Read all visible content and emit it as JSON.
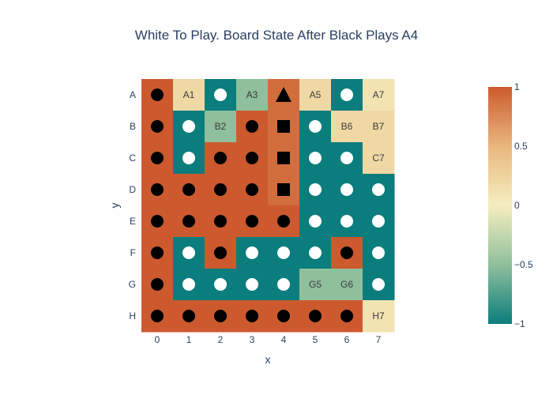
{
  "chart_data": {
    "type": "heatmap",
    "title": "White To Play. Board State After Black Plays A4",
    "xlabel": "x",
    "ylabel": "y",
    "x_ticks": [
      "0",
      "1",
      "2",
      "3",
      "4",
      "5",
      "6",
      "7"
    ],
    "y_ticks": [
      "A",
      "B",
      "C",
      "D",
      "E",
      "F",
      "G",
      "H"
    ],
    "colorscale": {
      "min": -1,
      "max": 1,
      "stops": [
        [
          0,
          "#0b7d7d"
        ],
        [
          0.25,
          "#8fbf9c"
        ],
        [
          0.5,
          "#f5eebf"
        ],
        [
          0.75,
          "#e9b77e"
        ],
        [
          1,
          "#cc5a2e"
        ]
      ],
      "ticks": [
        -1,
        -0.5,
        0,
        0.5,
        1
      ],
      "tick_labels": [
        "−1",
        "−0.5",
        "0",
        "0.5",
        "1"
      ]
    },
    "z": [
      [
        1,
        0.2,
        -1,
        -0.5,
        0.9,
        0.2,
        -1,
        0.1
      ],
      [
        1,
        -1,
        -0.5,
        1,
        0.9,
        -1,
        0.2,
        0.2
      ],
      [
        1,
        -1,
        1,
        1,
        0.9,
        -1,
        -1,
        0.2
      ],
      [
        1,
        1,
        1,
        1,
        0.9,
        -1,
        -1,
        -1
      ],
      [
        1,
        1,
        1,
        1,
        1,
        -1,
        -1,
        -1
      ],
      [
        1,
        -1,
        1,
        -1,
        -1,
        -1,
        1,
        -1
      ],
      [
        1,
        -1,
        -1,
        -1,
        -1,
        -0.5,
        -0.5,
        -1
      ],
      [
        1,
        1,
        1,
        1,
        1,
        1,
        1,
        0.1
      ]
    ],
    "markers": [
      [
        "black-circle",
        "empty",
        "white-circle",
        "empty",
        "black-triangle",
        "empty",
        "white-circle",
        "empty"
      ],
      [
        "black-circle",
        "white-circle",
        "empty",
        "black-circle",
        "black-square",
        "white-circle",
        "empty",
        "empty"
      ],
      [
        "black-circle",
        "white-circle",
        "black-circle",
        "black-circle",
        "black-square",
        "white-circle",
        "white-circle",
        "empty"
      ],
      [
        "black-circle",
        "black-circle",
        "black-circle",
        "black-circle",
        "black-square",
        "white-circle",
        "white-circle",
        "white-circle"
      ],
      [
        "black-circle",
        "black-circle",
        "black-circle",
        "black-circle",
        "black-circle",
        "white-circle",
        "white-circle",
        "white-circle"
      ],
      [
        "black-circle",
        "white-circle",
        "black-circle",
        "white-circle",
        "white-circle",
        "white-circle",
        "black-circle",
        "white-circle"
      ],
      [
        "black-circle",
        "white-circle",
        "white-circle",
        "white-circle",
        "white-circle",
        "empty",
        "empty",
        "white-circle"
      ],
      [
        "black-circle",
        "black-circle",
        "black-circle",
        "black-circle",
        "black-circle",
        "black-circle",
        "black-circle",
        "empty"
      ]
    ],
    "cell_labels": [
      [
        "",
        "A1",
        "",
        "A3",
        "",
        "A5",
        "",
        "A7"
      ],
      [
        "",
        "",
        "B2",
        "",
        "",
        "",
        "B6",
        "B7"
      ],
      [
        "",
        "",
        "",
        "",
        "",
        "",
        "",
        "C7"
      ],
      [
        "",
        "",
        "",
        "",
        "",
        "",
        "",
        ""
      ],
      [
        "",
        "",
        "",
        "",
        "",
        "",
        "",
        ""
      ],
      [
        "",
        "",
        "",
        "",
        "",
        "",
        "",
        ""
      ],
      [
        "",
        "",
        "",
        "",
        "",
        "G5",
        "G6",
        ""
      ],
      [
        "",
        "",
        "",
        "",
        "",
        "",
        "",
        "H7"
      ]
    ]
  }
}
